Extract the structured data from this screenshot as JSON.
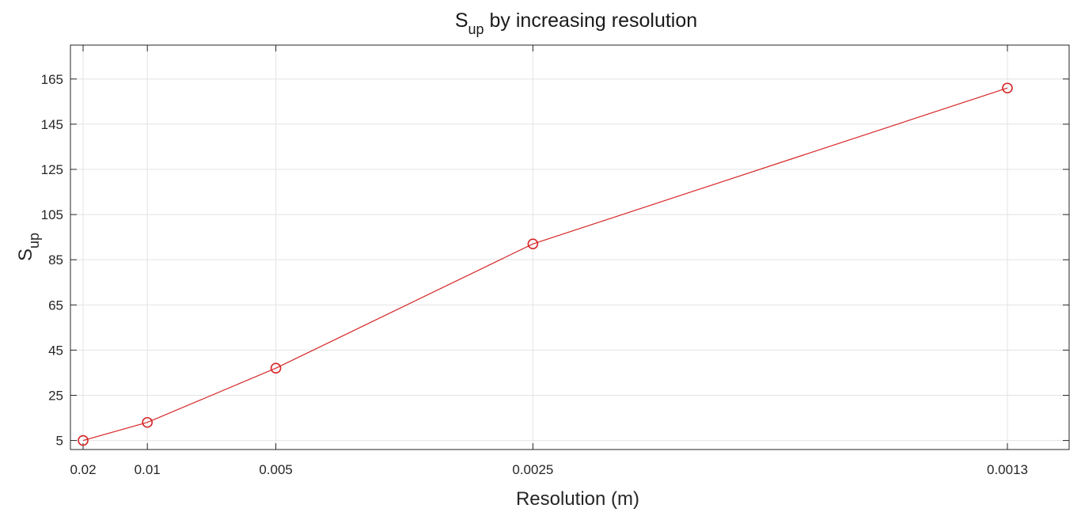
{
  "chart_data": {
    "type": "line",
    "title": {
      "main": "S",
      "sub": "up",
      "rest": " by increasing resolution"
    },
    "xlabel": "Resolution (m)",
    "ylabel": {
      "main": "S",
      "sub": "up"
    },
    "x_axis": {
      "scale": "reciprocal",
      "ticks": [
        0.02,
        0.01,
        0.005,
        0.0025,
        0.0013
      ],
      "tick_labels": [
        "0.02",
        "0.01",
        "0.005",
        "0.0025",
        "0.0013"
      ]
    },
    "y_axis": {
      "ticks": [
        5,
        25,
        45,
        65,
        85,
        105,
        125,
        145,
        165
      ],
      "tick_labels": [
        "5",
        "25",
        "45",
        "65",
        "85",
        "105",
        "125",
        "145",
        "165"
      ],
      "ylim": [
        1,
        180
      ]
    },
    "series": [
      {
        "color": "#d62728",
        "marker": "circle",
        "points": [
          {
            "x": 0.02,
            "y": 5
          },
          {
            "x": 0.01,
            "y": 13
          },
          {
            "x": 0.005,
            "y": 37
          },
          {
            "x": 0.0025,
            "y": 92
          },
          {
            "x": 0.0013,
            "y": 161
          }
        ]
      }
    ],
    "grid": true
  }
}
